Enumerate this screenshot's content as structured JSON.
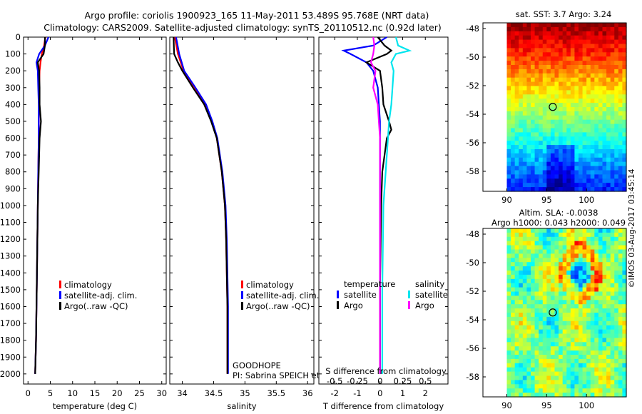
{
  "header": {
    "title_line1": "Argo profile: coriolis 1900923_165 11-May-2011 53.489S 95.768E (NRT data)",
    "title_line2": "Climatology: CARS2009. Satellite-adjusted climatology: synTS_20110512.nc (0.92d later)"
  },
  "colors": {
    "climatology": "#ff0000",
    "satellite": "#0000ff",
    "argo": "#000000",
    "sal_satellite": "#00e5ee",
    "sal_argo": "#ff00ff"
  },
  "depth_axis": {
    "ticks": [
      0,
      100,
      200,
      300,
      400,
      500,
      600,
      700,
      800,
      900,
      1000,
      1100,
      1200,
      1300,
      1400,
      1500,
      1600,
      1700,
      1800,
      1900,
      2000
    ],
    "ylim": [
      0,
      2060
    ]
  },
  "chart_data": [
    {
      "type": "line",
      "id": "temperature",
      "xlabel": "temperature (deg C)",
      "xlim": [
        -1,
        31
      ],
      "xticks": [
        0,
        5,
        10,
        15,
        20,
        25,
        30
      ],
      "legend": [
        "climatology",
        "satellite-adj. clim.",
        "Argo(..raw -QC)"
      ],
      "series": [
        {
          "name": "climatology",
          "color": "red",
          "depth": [
            0,
            50,
            100,
            150,
            200,
            300,
            400,
            600,
            800,
            1000,
            1400,
            1800,
            2000
          ],
          "values": [
            3.9,
            3.6,
            3.1,
            2.8,
            2.6,
            2.5,
            2.45,
            2.4,
            2.3,
            2.2,
            2.0,
            1.8,
            1.6
          ]
        },
        {
          "name": "satellite-adj. clim.",
          "color": "blue",
          "depth": [
            0,
            50,
            100,
            150,
            200,
            300,
            400,
            600,
            800,
            1000,
            1400,
            1800,
            2000
          ],
          "values": [
            4.6,
            3.8,
            2.5,
            1.9,
            2.2,
            2.3,
            2.4,
            2.4,
            2.3,
            2.2,
            2.0,
            1.8,
            1.6
          ]
        },
        {
          "name": "Argo(..raw -QC)",
          "color": "black",
          "depth": [
            0,
            50,
            100,
            150,
            200,
            300,
            400,
            500,
            600,
            800,
            1000,
            1400,
            1800,
            2000
          ],
          "values": [
            3.8,
            3.8,
            3.5,
            2.2,
            2.5,
            2.6,
            2.6,
            2.9,
            2.6,
            2.4,
            2.2,
            2.0,
            1.8,
            1.6
          ]
        }
      ]
    },
    {
      "type": "line",
      "id": "salinity",
      "xlabel": "salinity",
      "xlim": [
        33.8,
        36.1
      ],
      "xticks": [
        34,
        34.5,
        35,
        35.5,
        36
      ],
      "legend": [
        "climatology",
        "satellite-adj. clim.",
        "Argo(..raw -QC)"
      ],
      "annotation": [
        "GOODHOPE",
        "PI: Sabrina SPEICH et Michel AREAN"
      ],
      "series": [
        {
          "name": "climatology",
          "color": "red",
          "depth": [
            0,
            100,
            200,
            300,
            400,
            500,
            600,
            800,
            1000,
            1200,
            1400,
            1600,
            2000
          ],
          "values": [
            33.88,
            33.93,
            34.02,
            34.2,
            34.37,
            34.47,
            34.55,
            34.63,
            34.68,
            34.7,
            34.71,
            34.72,
            34.72
          ]
        },
        {
          "name": "satellite-adj. clim.",
          "color": "blue",
          "depth": [
            0,
            100,
            200,
            300,
            400,
            500,
            600,
            800,
            1000,
            1200,
            1400,
            1600,
            2000
          ],
          "values": [
            33.9,
            33.95,
            34.03,
            34.21,
            34.38,
            34.48,
            34.56,
            34.64,
            34.69,
            34.71,
            34.72,
            34.73,
            34.73
          ]
        },
        {
          "name": "Argo(..raw -QC)",
          "color": "black",
          "depth": [
            0,
            100,
            150,
            200,
            300,
            400,
            500,
            600,
            800,
            1000,
            1200,
            1400,
            1600,
            2000
          ],
          "values": [
            33.86,
            33.87,
            33.93,
            34.0,
            34.17,
            34.35,
            34.46,
            34.55,
            34.63,
            34.68,
            34.7,
            34.71,
            34.72,
            34.72
          ]
        }
      ]
    },
    {
      "type": "line",
      "id": "differences",
      "xlabel": "T difference from climatology",
      "top_label": "S difference from climatology",
      "xlim": [
        -2.7,
        3.0
      ],
      "xticks": [
        -2,
        -1,
        0,
        1,
        2
      ],
      "top_ticks": [
        -0.5,
        -0.25,
        0,
        0.25,
        0.5
      ],
      "legend_headers": [
        "temperature",
        "salinity"
      ],
      "legend": [
        "satellite",
        "Argo",
        "satellite",
        "Argo"
      ],
      "series": [
        {
          "name": "T satellite",
          "color": "blue",
          "depth": [
            0,
            50,
            80,
            100,
            150,
            200,
            300,
            400,
            500,
            600,
            700,
            800,
            1000,
            1500,
            2000
          ],
          "values": [
            0.3,
            -0.3,
            -1.6,
            -1.3,
            -0.6,
            -0.3,
            -0.1,
            -0.05,
            0.0,
            0.0,
            0.0,
            0.0,
            0.0,
            0.0,
            0.0
          ]
        },
        {
          "name": "T Argo",
          "color": "black",
          "depth": [
            0,
            50,
            80,
            100,
            150,
            200,
            300,
            400,
            500,
            550,
            600,
            800,
            1000,
            1500,
            2000
          ],
          "values": [
            -0.1,
            0.2,
            0.5,
            0.3,
            -0.6,
            0.0,
            0.1,
            0.15,
            0.4,
            0.5,
            0.3,
            0.1,
            0.05,
            0.0,
            0.0
          ]
        },
        {
          "name": "S satellite",
          "color": "cyan",
          "depth": [
            0,
            50,
            80,
            100,
            150,
            200,
            300,
            400,
            500,
            600,
            800,
            1000,
            1500,
            2000
          ],
          "values": [
            0.7,
            0.8,
            1.3,
            0.7,
            0.5,
            0.6,
            0.55,
            0.5,
            0.4,
            0.35,
            0.25,
            0.15,
            0.1,
            0.1
          ]
        },
        {
          "name": "S Argo",
          "color": "magenta",
          "depth": [
            0,
            50,
            100,
            150,
            200,
            300,
            400,
            500,
            600,
            800,
            1000,
            1500,
            2000
          ],
          "values": [
            -0.3,
            -0.25,
            -0.3,
            -0.4,
            -0.2,
            -0.3,
            -0.1,
            -0.05,
            0.0,
            0.0,
            0.0,
            0.0,
            0.0
          ]
        }
      ]
    },
    {
      "type": "heatmap",
      "id": "sst-map",
      "title": "sat. SST: 3.7 Argo: 3.24",
      "lon_range": [
        87,
        105
      ],
      "lat_range": [
        -59.4,
        -47.6
      ],
      "xticks": [
        90,
        95,
        100
      ],
      "yticks": [
        -48,
        -50,
        -52,
        -54,
        -56,
        -58
      ],
      "marker": {
        "lon": 95.768,
        "lat": -53.489
      }
    },
    {
      "type": "heatmap",
      "id": "sla-map",
      "title": "Altim. SLA: -0.0038",
      "subtitle": "Argo h1000: 0.043 h2000: 0.049",
      "lon_range": [
        87,
        105
      ],
      "lat_range": [
        -59.4,
        -47.6
      ],
      "xticks": [
        90,
        95,
        100
      ],
      "yticks": [
        -48,
        -50,
        -52,
        -54,
        -56,
        -58
      ],
      "marker": {
        "lon": 95.768,
        "lat": -53.489
      }
    }
  ],
  "footer_credit": "©IMOS 03-Aug-2017 03:45:14"
}
